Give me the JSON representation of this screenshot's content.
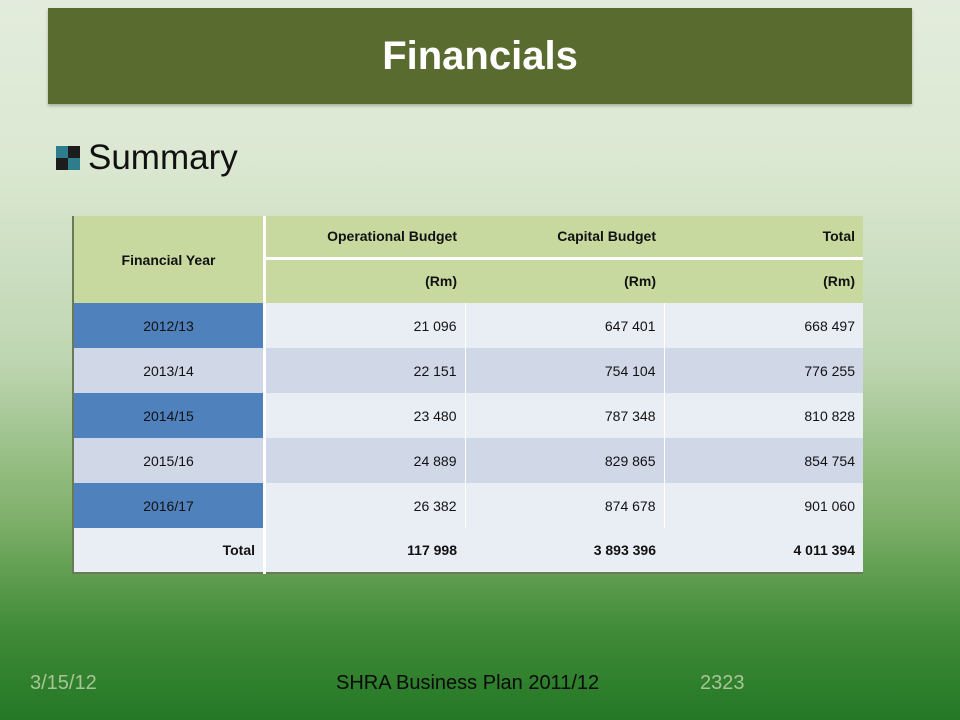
{
  "title": "Financials",
  "bullet": {
    "text": "Summary",
    "icon": "checkered-square-icon",
    "colors": [
      "#2e7d8c",
      "#1c1c1c",
      "#1c1c1c",
      "#2e7d8c"
    ]
  },
  "table": {
    "header": {
      "year": "Financial Year",
      "col1": "Operational Budget",
      "col2": "Capital Budget",
      "col3": "Total",
      "unit1": "(Rm)",
      "unit2": "(Rm)",
      "unit3": "(Rm)"
    },
    "rows": [
      {
        "year": "2012/13",
        "op": "21 096",
        "cap": "647 401",
        "total": "668 497"
      },
      {
        "year": "2013/14",
        "op": "22 151",
        "cap": "754 104",
        "total": "776 255"
      },
      {
        "year": "2014/15",
        "op": "23 480",
        "cap": "787 348",
        "total": "810 828"
      },
      {
        "year": "2015/16",
        "op": "24 889",
        "cap": "829 865",
        "total": "854 754"
      },
      {
        "year": "2016/17",
        "op": "26 382",
        "cap": "874 678",
        "total": "901 060"
      }
    ],
    "total": {
      "label": "Total",
      "op": "117 998",
      "cap": "3 893 396",
      "total": "4 011 394"
    }
  },
  "footer": {
    "date": "3/15/12",
    "center": "SHRA  Business Plan 2011/12",
    "page": "2323"
  },
  "colors": {
    "title_bar": "#5a6b30",
    "header_green": "#c8d9a0",
    "row_blue": "#4f81bd",
    "row_light": "#d0d8e8"
  }
}
